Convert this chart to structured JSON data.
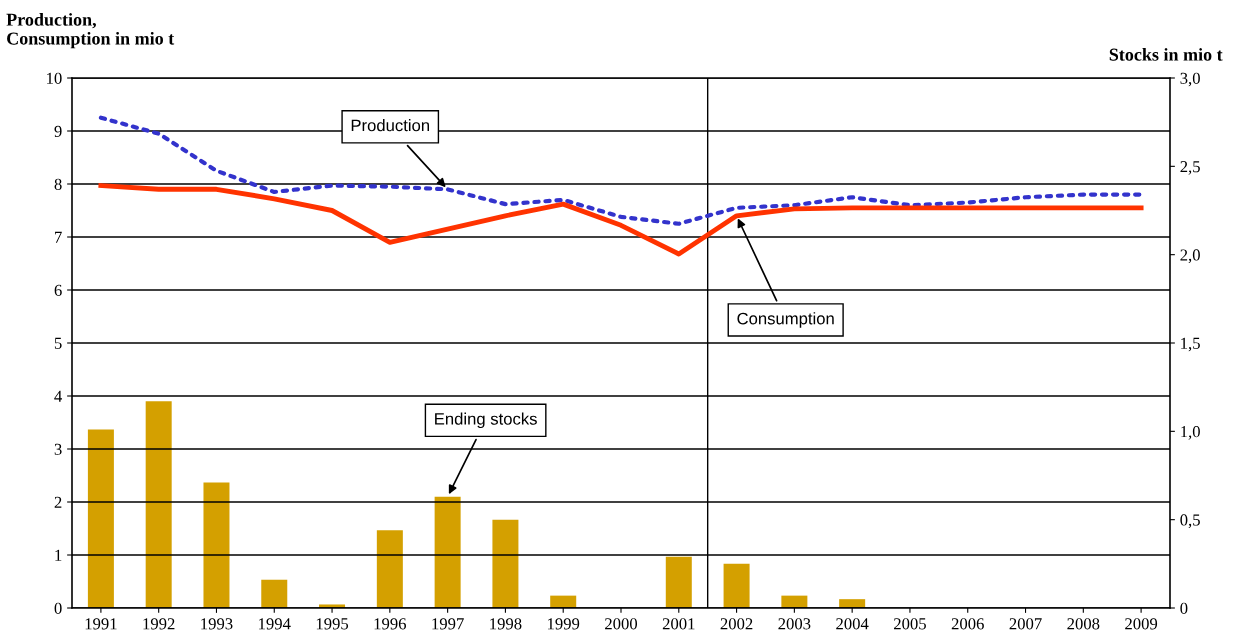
{
  "chart_data": {
    "type": "line",
    "ylabel": "Production,\nConsumption in mio t",
    "y2label": "Stocks in mio t",
    "categories": [
      "1991",
      "1992",
      "1993",
      "1994",
      "1995",
      "1996",
      "1997",
      "1998",
      "1999",
      "2000",
      "2001",
      "2002",
      "2003",
      "2004",
      "2005",
      "2006",
      "2007",
      "2008",
      "2009"
    ],
    "series": [
      {
        "type": "bar",
        "axis": "y2",
        "color": "#d4a000",
        "values": [
          1.01,
          1.17,
          0.71,
          0.16,
          0.02,
          0.44,
          0.63,
          0.5,
          0.07,
          0,
          0.29,
          0.25,
          0.07,
          0.05,
          0,
          0,
          0,
          0,
          0
        ]
      },
      {
        "color": "#3333cc",
        "line_style": "dotted",
        "values": [
          9.25,
          8.95,
          8.25,
          7.85,
          7.97,
          7.95,
          7.9,
          7.62,
          7.7,
          7.38,
          7.25,
          7.55,
          7.6,
          7.75,
          7.6,
          7.65,
          7.75,
          7.8,
          7.8
        ]
      },
      {
        "color": "#ff3300",
        "line_style": "solid",
        "values": [
          7.97,
          7.9,
          7.9,
          7.72,
          7.5,
          6.9,
          7.15,
          7.4,
          7.62,
          7.22,
          6.68,
          7.4,
          7.53,
          7.55,
          7.55,
          7.55,
          7.55,
          7.55,
          7.55
        ]
      }
    ],
    "ylim": [
      0,
      10
    ],
    "yticks": [
      0,
      1,
      2,
      3,
      4,
      5,
      6,
      7,
      8,
      9,
      10
    ],
    "y2lim": [
      0,
      3
    ],
    "y2ticks": [
      0,
      {
        "value": 0.5,
        "label": "0,5"
      },
      {
        "value": 1.0,
        "label": "1,0"
      },
      {
        "value": 1.5,
        "label": "1,5"
      },
      {
        "value": 2.0,
        "label": "2,0"
      },
      {
        "value": 2.5,
        "label": "2,5"
      },
      {
        "value": 3.0,
        "label": "3,0"
      }
    ],
    "grid": "y",
    "legend": false,
    "annotations": [
      {
        "text": "Production",
        "x": "1997",
        "y": 7.9
      },
      {
        "text": "Consumption",
        "x": "2002",
        "y": 7.4
      },
      {
        "text": "Ending stocks",
        "x": "1997",
        "y": 2.1
      }
    ]
  }
}
